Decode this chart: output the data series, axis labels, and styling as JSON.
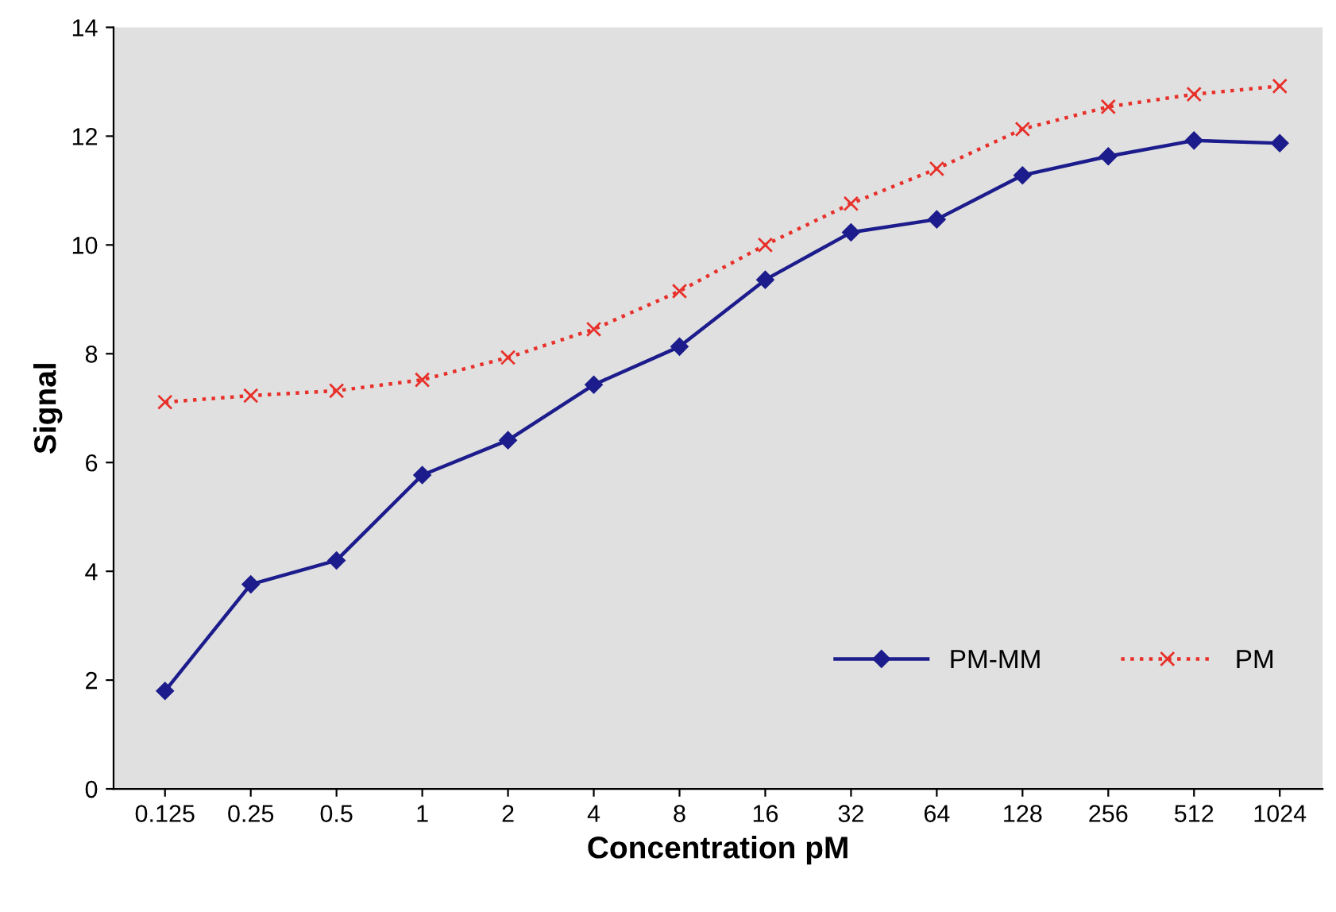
{
  "chart_data": {
    "type": "line",
    "xlabel": "Concentration pM",
    "ylabel": "Signal",
    "categories": [
      "0.125",
      "0.25",
      "0.5",
      "1",
      "2",
      "4",
      "8",
      "16",
      "32",
      "64",
      "128",
      "256",
      "512",
      "1024"
    ],
    "series": [
      {
        "name": "PM-MM",
        "color": "#1c1c8c",
        "marker": "diamond",
        "line_style": "solid",
        "values": [
          1.8,
          3.76,
          4.2,
          5.77,
          6.41,
          7.43,
          8.13,
          9.36,
          10.23,
          10.47,
          11.28,
          11.63,
          11.92,
          11.87
        ]
      },
      {
        "name": "PM",
        "color": "#e8302a",
        "marker": "cross",
        "line_style": "dotted",
        "values": [
          7.11,
          7.23,
          7.32,
          7.52,
          7.93,
          8.45,
          9.15,
          10.0,
          10.76,
          11.4,
          12.13,
          12.54,
          12.77,
          12.92
        ]
      }
    ],
    "ylim": [
      0,
      14
    ],
    "yticks": [
      0,
      2,
      4,
      6,
      8,
      10,
      12,
      14
    ],
    "grid": false,
    "legend": "bottom right"
  }
}
